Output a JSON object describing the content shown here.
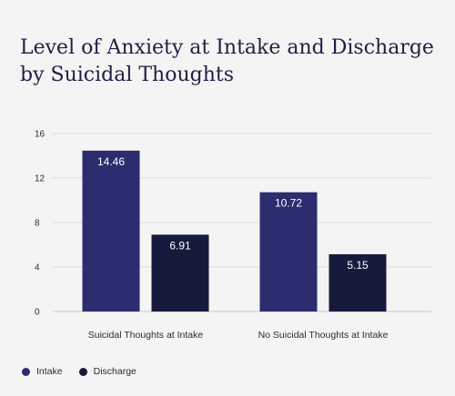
{
  "chart_data": {
    "type": "bar",
    "title": "Level of Anxiety at Intake and Discharge by Suicidal Thoughts",
    "categories": [
      "Suicidal Thoughts at Intake",
      "No Suicidal Thoughts at Intake"
    ],
    "series": [
      {
        "name": "Intake",
        "values": [
          14.46,
          10.72
        ],
        "labels": [
          "14.46",
          "10.72"
        ],
        "color": "#2b2d6e"
      },
      {
        "name": "Discharge",
        "values": [
          6.91,
          5.15
        ],
        "labels": [
          "6.91",
          "5.15"
        ],
        "color": "#181a3d"
      }
    ],
    "ylim": [
      0,
      16
    ],
    "yticks": [
      0,
      4,
      8,
      12,
      16
    ],
    "ytick_labels": [
      "0",
      "4",
      "8",
      "12",
      "16"
    ],
    "grid": true,
    "legend_position": "bottom-left"
  }
}
